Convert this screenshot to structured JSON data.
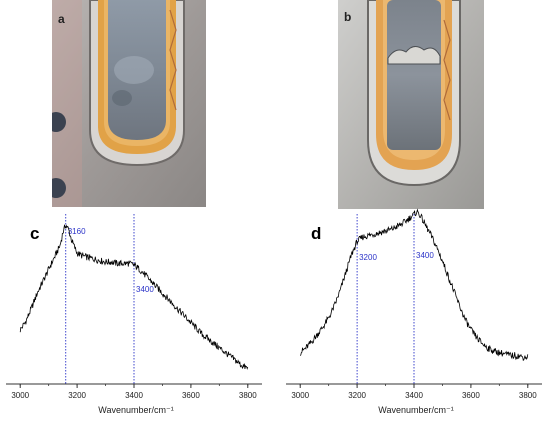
{
  "panels": {
    "a": "a",
    "b": "b",
    "c": "c",
    "d": "d"
  },
  "chart_data": [
    {
      "type": "line",
      "panel": "c",
      "xlabel": "Wavenumber/cm⁻¹",
      "ylabel": "",
      "xlim": [
        2950,
        3850
      ],
      "xticks": [
        3000,
        3200,
        3400,
        3600,
        3800
      ],
      "y_units": "relative intensity",
      "ylim": [
        0,
        1
      ],
      "reference_lines": [
        {
          "x": 3160,
          "label": "3160",
          "color": "#2b33c8"
        },
        {
          "x": 3400,
          "label": "3400",
          "color": "#2b33c8"
        }
      ],
      "series": [
        {
          "x": [
            3000,
            3020,
            3040,
            3060,
            3080,
            3100,
            3120,
            3140,
            3150,
            3160,
            3170,
            3180,
            3200,
            3220,
            3240,
            3260,
            3280,
            3300,
            3320,
            3340,
            3360,
            3380,
            3400,
            3420,
            3440,
            3460,
            3480,
            3500,
            3520,
            3540,
            3560,
            3580,
            3600,
            3620,
            3640,
            3660,
            3680,
            3700,
            3720,
            3740,
            3760,
            3780,
            3800
          ],
          "y": [
            0.27,
            0.33,
            0.42,
            0.52,
            0.6,
            0.68,
            0.76,
            0.84,
            0.93,
            0.98,
            0.95,
            0.88,
            0.79,
            0.77,
            0.76,
            0.75,
            0.74,
            0.73,
            0.73,
            0.72,
            0.72,
            0.72,
            0.71,
            0.68,
            0.64,
            0.6,
            0.56,
            0.52,
            0.48,
            0.44,
            0.4,
            0.36,
            0.32,
            0.28,
            0.24,
            0.21,
            0.18,
            0.15,
            0.12,
            0.09,
            0.06,
            0.03,
            0.01
          ],
          "color": "#000000"
        }
      ]
    },
    {
      "type": "line",
      "panel": "d",
      "xlabel": "Wavenumber/cm⁻¹",
      "ylabel": "",
      "xlim": [
        2950,
        3850
      ],
      "xticks": [
        3000,
        3200,
        3400,
        3600,
        3800
      ],
      "y_units": "relative intensity",
      "ylim": [
        0,
        1
      ],
      "reference_lines": [
        {
          "x": 3200,
          "label": "3200",
          "color": "#2b33c8"
        },
        {
          "x": 3400,
          "label": "3400",
          "color": "#2b33c8"
        }
      ],
      "series": [
        {
          "x": [
            3000,
            3020,
            3040,
            3060,
            3080,
            3100,
            3120,
            3140,
            3160,
            3180,
            3200,
            3220,
            3240,
            3260,
            3280,
            3300,
            3320,
            3340,
            3360,
            3380,
            3400,
            3410,
            3420,
            3440,
            3460,
            3480,
            3500,
            3520,
            3540,
            3560,
            3580,
            3600,
            3620,
            3640,
            3660,
            3680,
            3700,
            3720,
            3740,
            3760,
            3780,
            3800
          ],
          "y": [
            0.05,
            0.08,
            0.12,
            0.17,
            0.22,
            0.28,
            0.36,
            0.46,
            0.58,
            0.7,
            0.79,
            0.82,
            0.83,
            0.84,
            0.85,
            0.86,
            0.87,
            0.89,
            0.91,
            0.94,
            0.97,
            0.99,
            0.97,
            0.9,
            0.83,
            0.75,
            0.66,
            0.56,
            0.46,
            0.36,
            0.27,
            0.2,
            0.15,
            0.11,
            0.08,
            0.06,
            0.05,
            0.04,
            0.03,
            0.03,
            0.02,
            0.02
          ],
          "color": "#000000"
        }
      ]
    }
  ]
}
